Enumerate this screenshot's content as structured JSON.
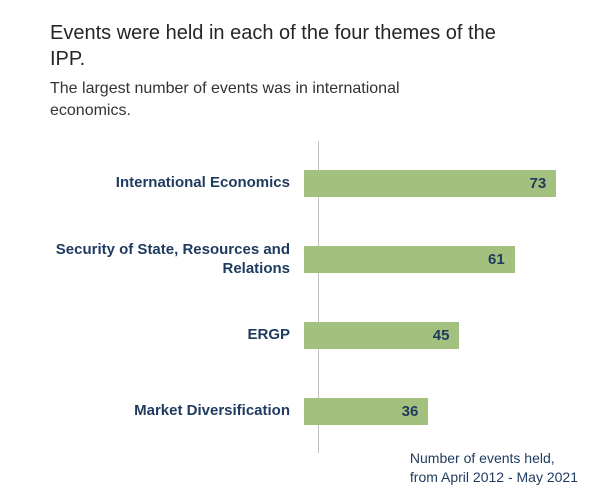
{
  "title": "Events were held in each of the four themes of the IPP.",
  "subtitle": "The largest number of events was in international economics.",
  "caption": "Number of events held,\nfrom April 2012 - May 2021",
  "colors": {
    "bar": "#a3c07e",
    "label": "#1f3a5f",
    "axis": "#bfbfbf",
    "title_text": "#262626"
  },
  "chart_data": {
    "type": "bar",
    "orientation": "horizontal",
    "title": "Events were held in each of the four themes of the IPP.",
    "subtitle": "The largest number of events was in international economics.",
    "categories": [
      "International Economics",
      "Security of State, Resources and Relations",
      "ERGP",
      "Market Diversification"
    ],
    "values": [
      73,
      61,
      45,
      36
    ],
    "value_labels": true,
    "xlabel": "",
    "ylabel": "",
    "xlim": [
      0,
      75
    ],
    "grid": false,
    "legend": false,
    "annotation": "Number of events held, from April 2012 - May 2021"
  }
}
